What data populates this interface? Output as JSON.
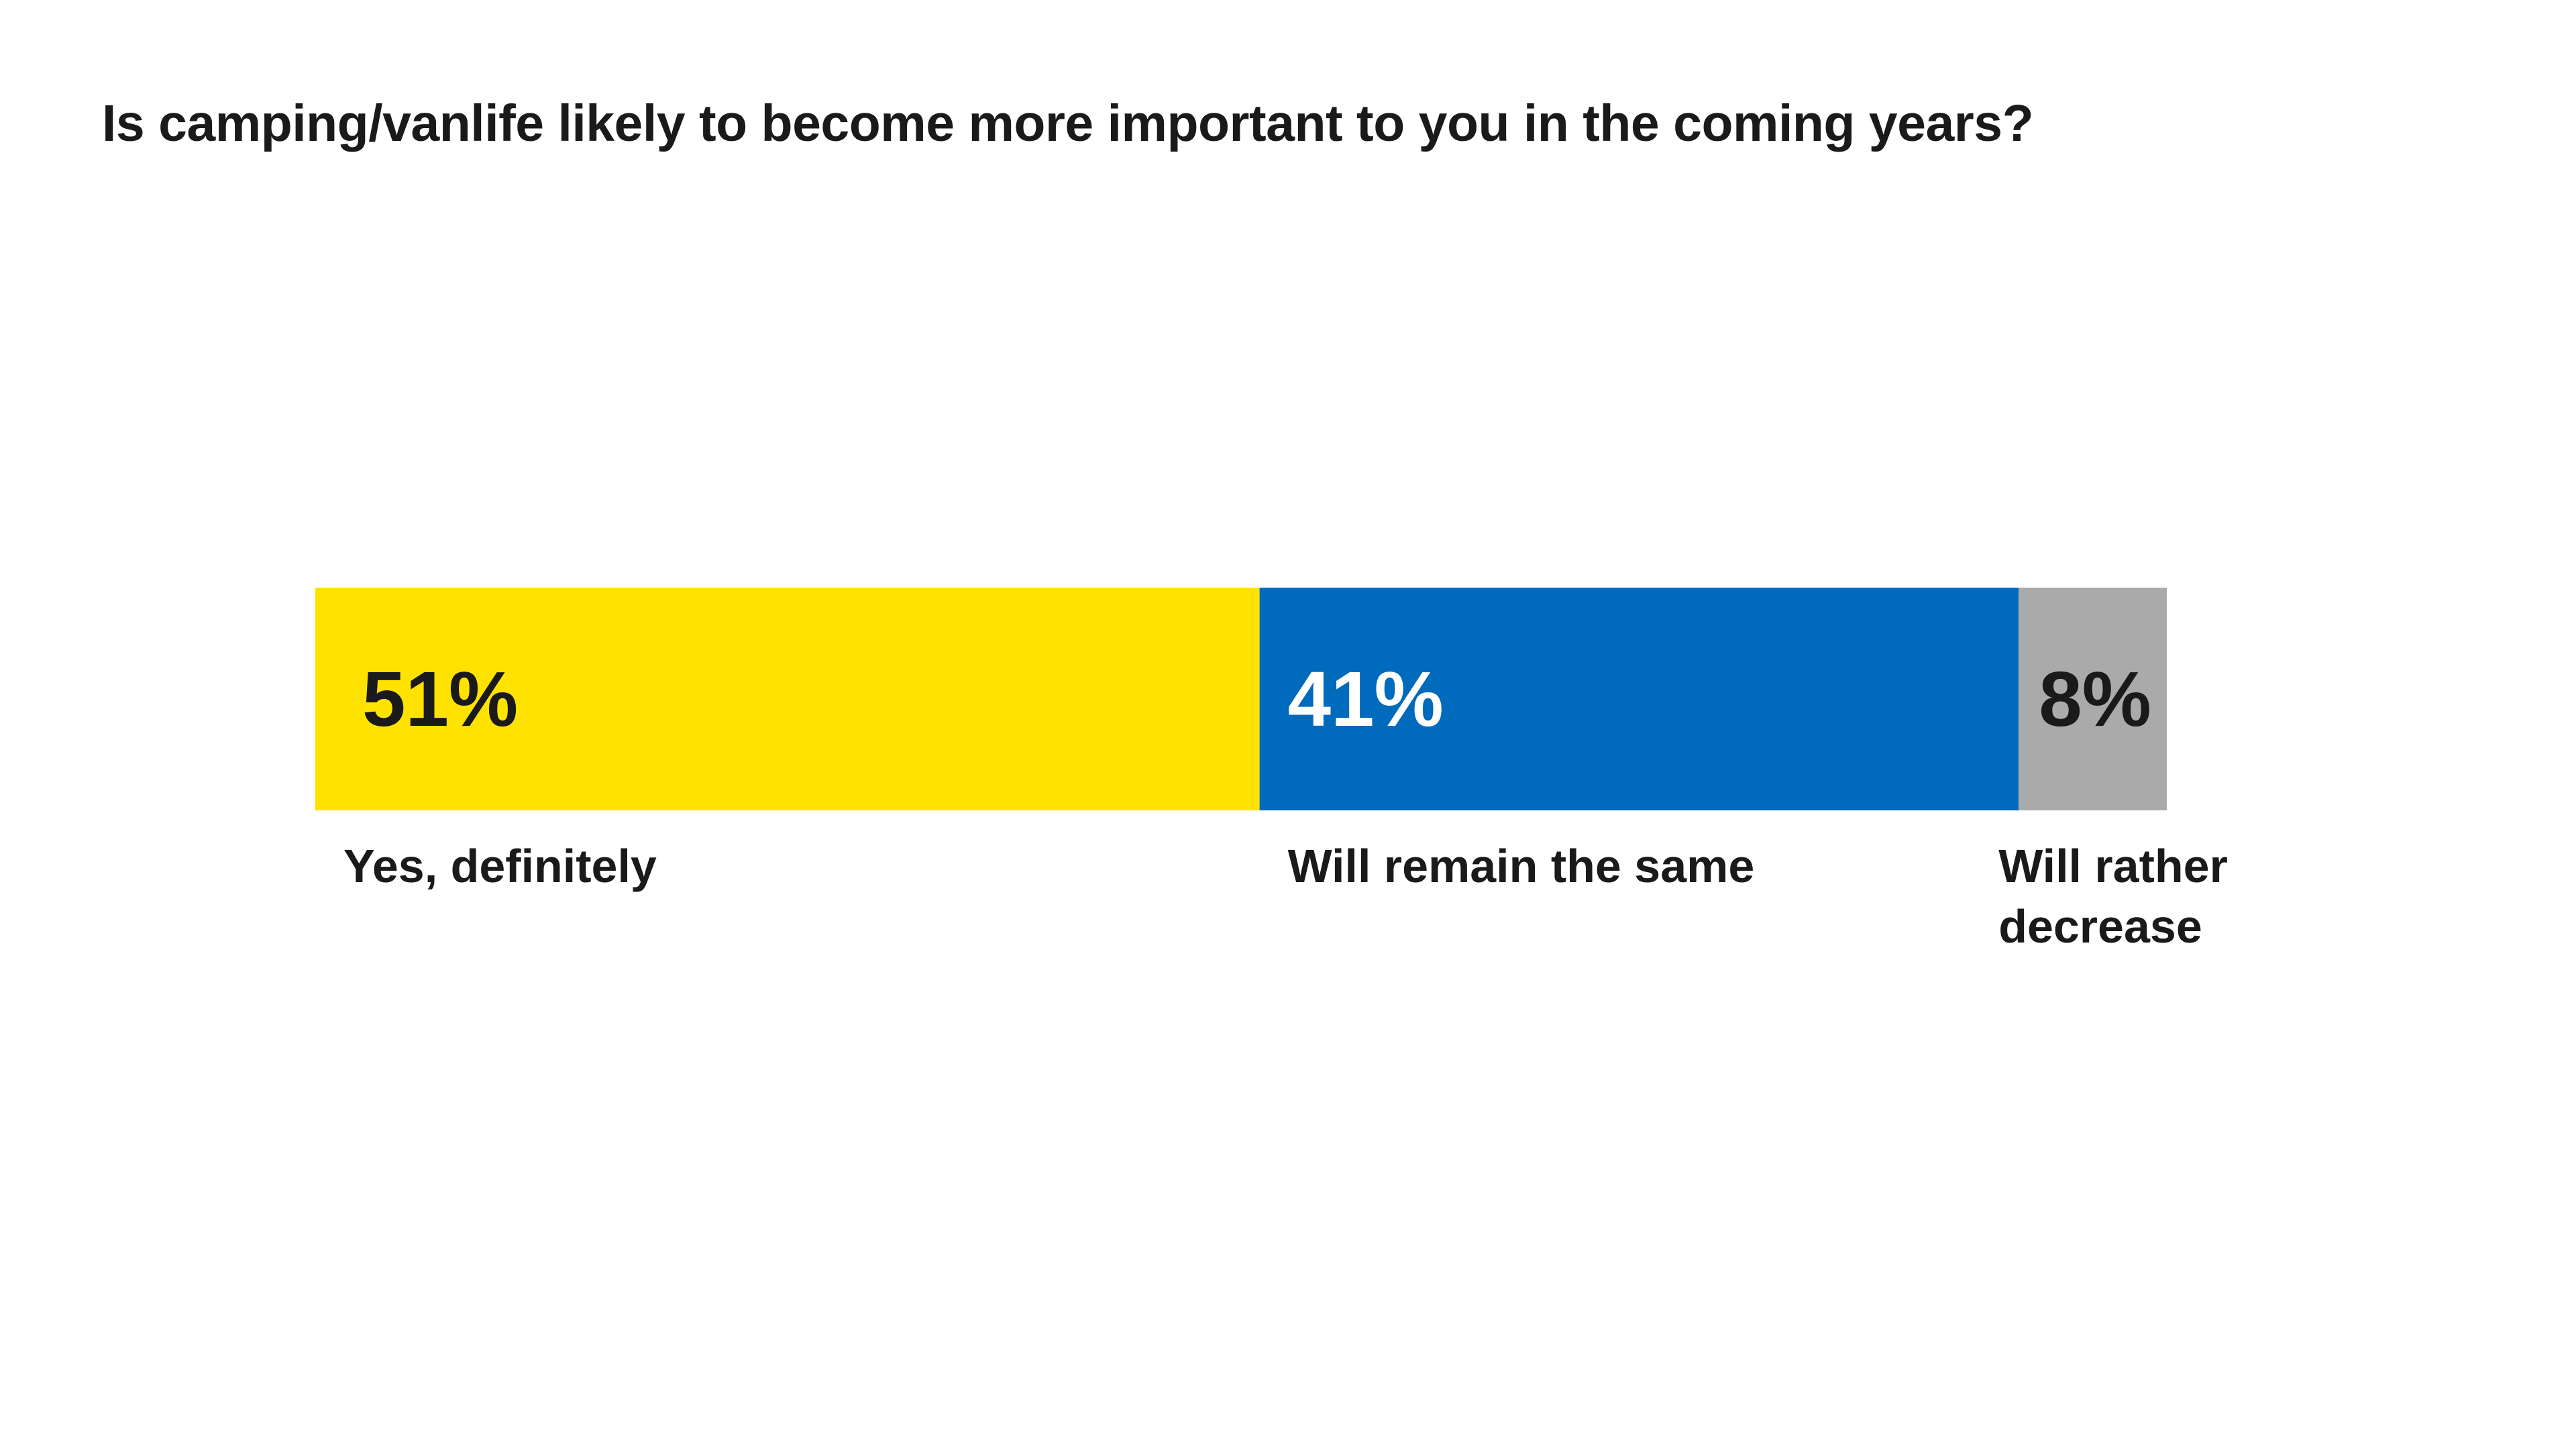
{
  "title": "Is camping/vanlife likely to become more important to you in the coming years?",
  "chart_data": {
    "type": "bar",
    "orientation": "horizontal-stacked-100",
    "title": "Is camping/vanlife likely to become more important to you in the coming years?",
    "unit": "%",
    "series": [
      {
        "name": "Yes, definitely",
        "value": 51,
        "label": "51%",
        "label_lines": [
          "Yes, definitely"
        ],
        "color": "#FFE200",
        "text_color": "#1a1a1a"
      },
      {
        "name": "Will remain the same",
        "value": 41,
        "label": "41%",
        "label_lines": [
          "Will remain the same"
        ],
        "color": "#006ABC",
        "text_color": "#ffffff"
      },
      {
        "name": "Will rather decrease",
        "value": 8,
        "label": "8%",
        "label_lines": [
          "Will rather",
          "decrease"
        ],
        "color": "#AAAAAA",
        "text_color": "#1a1a1a"
      }
    ],
    "total": 100,
    "legend": "none",
    "grid": false
  }
}
